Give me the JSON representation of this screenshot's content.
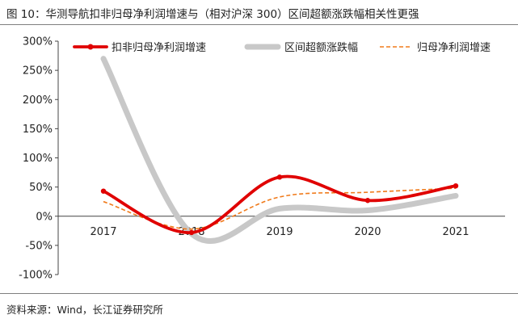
{
  "title": "图 10：华测导航扣非归母净利润增速与（相对沪深 300）区间超额涨跌幅相关性更强",
  "source": "资料来源：Wind，长江证券研究所",
  "chart_data": {
    "type": "line",
    "x": [
      "2017",
      "2018",
      "2019",
      "2020",
      "2021"
    ],
    "ylim": [
      -1.0,
      3.0
    ],
    "y_ticks": [
      "300%",
      "250%",
      "200%",
      "150%",
      "100%",
      "50%",
      "0%",
      "-50%",
      "-100%"
    ],
    "y_tick_values": [
      3.0,
      2.5,
      2.0,
      1.5,
      1.0,
      0.5,
      0.0,
      -0.5,
      -1.0
    ],
    "legend_position": "top",
    "series": [
      {
        "name": "扣非归母净利润增速",
        "values": [
          0.43,
          -0.28,
          0.67,
          0.27,
          0.52
        ],
        "color": "#e00000",
        "style": "solid-thick-marker"
      },
      {
        "name": "区间超额涨跌幅",
        "values": [
          2.7,
          -0.3,
          0.13,
          0.1,
          0.35
        ],
        "color": "#c8c8c8",
        "style": "solid-wide"
      },
      {
        "name": "归母净利润增速",
        "values": [
          0.25,
          -0.22,
          0.33,
          0.41,
          0.48
        ],
        "color": "#f07a1a",
        "style": "dashed"
      }
    ]
  }
}
